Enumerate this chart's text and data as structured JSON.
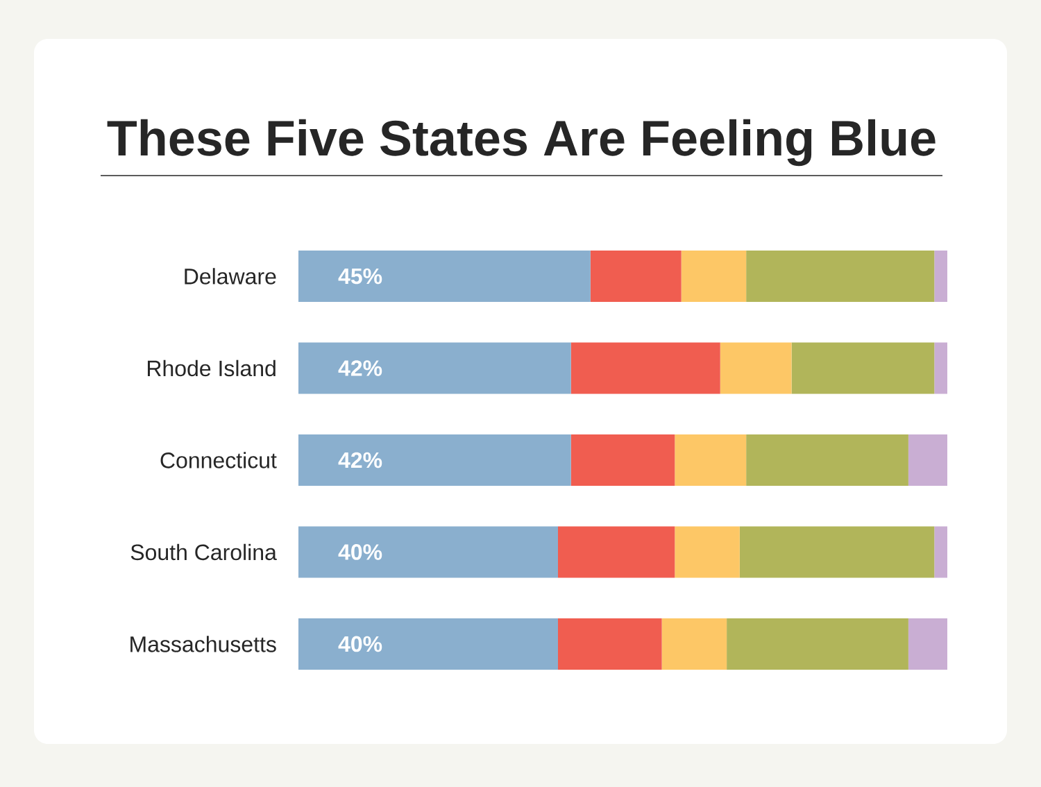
{
  "chart_data": {
    "type": "bar",
    "title": "These Five States Are Feeling Blue",
    "orientation": "horizontal",
    "stacked": true,
    "categories": [
      "Delaware",
      "Rhode Island",
      "Connecticut",
      "South Carolina",
      "Massachusetts"
    ],
    "tick_labels": "y",
    "series": [
      {
        "color": "#8aafce",
        "values": [
          45,
          42,
          42,
          40,
          40
        ],
        "value_labels": [
          "45%",
          "42%",
          "42%",
          "40%",
          "40%"
        ]
      },
      {
        "color": "#f05d50",
        "values": [
          14,
          23,
          16,
          18,
          16
        ]
      },
      {
        "color": "#fdc766",
        "values": [
          10,
          11,
          11,
          10,
          10
        ]
      },
      {
        "color": "#b1b55a",
        "values": [
          29,
          22,
          25,
          30,
          28
        ]
      },
      {
        "color": "#c9aed3",
        "values": [
          2,
          2,
          6,
          2,
          6
        ]
      }
    ]
  }
}
